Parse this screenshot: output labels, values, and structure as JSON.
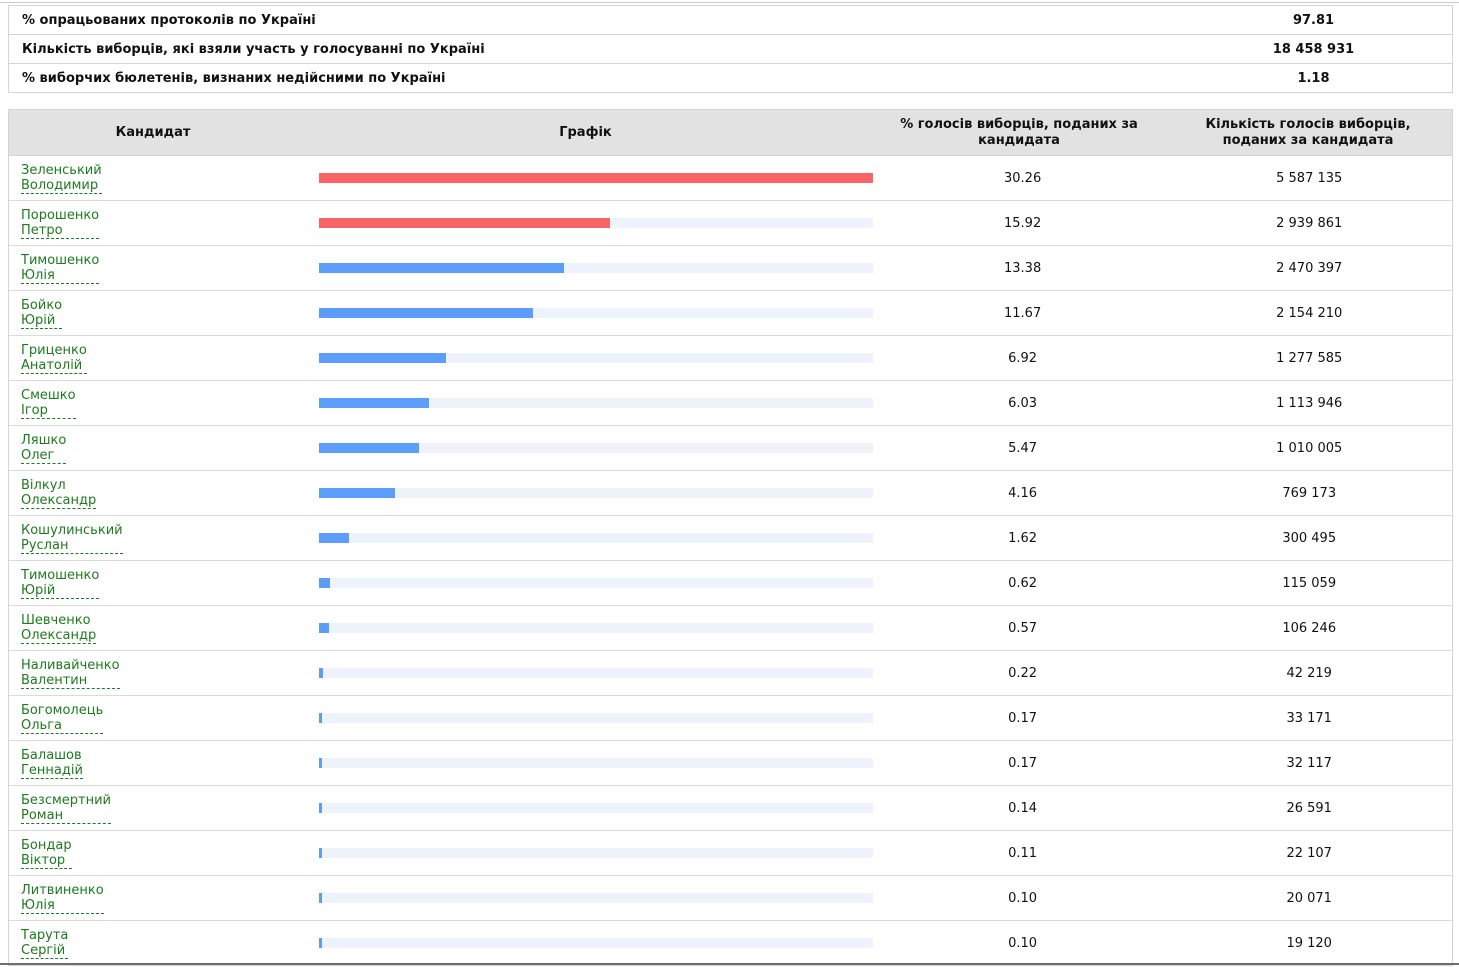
{
  "summary": [
    {
      "label": "% опрацьованих протоколів по Україні",
      "value": "97.81"
    },
    {
      "label": "Кількість виборців, які взяли участь у голосуванні по Україні",
      "value": "18 458 931"
    },
    {
      "label": "% виборчих бюлетенів, визнаних недійсними по Україні",
      "value": "1.18"
    }
  ],
  "table": {
    "headers": {
      "candidate": "Кандидат",
      "chart": "Графік",
      "percent": "% голосів виборців, поданих за кандидата",
      "votes": "Кількість голосів виборців, поданих за кандидата"
    },
    "colors": {
      "top": "#f96466",
      "other": "#5c9dfa",
      "track": "#eef2fb",
      "link": "#1d7a1d"
    },
    "max_percent": 30.26,
    "rows": [
      {
        "surname": "Зеленський",
        "given": "Володимир",
        "percent": "30.26",
        "votes": "5 587 135"
      },
      {
        "surname": "Порошенко",
        "given": "Петро",
        "percent": "15.92",
        "votes": "2 939 861"
      },
      {
        "surname": "Тимошенко",
        "given": "Юлія",
        "percent": "13.38",
        "votes": "2 470 397"
      },
      {
        "surname": "Бойко",
        "given": "Юрій",
        "percent": "11.67",
        "votes": "2 154 210"
      },
      {
        "surname": "Гриценко",
        "given": "Анатолій",
        "percent": "6.92",
        "votes": "1 277 585"
      },
      {
        "surname": "Смешко",
        "given": "Ігор",
        "percent": "6.03",
        "votes": "1 113 946"
      },
      {
        "surname": "Ляшко",
        "given": "Олег",
        "percent": "5.47",
        "votes": "1 010 005"
      },
      {
        "surname": "Вілкул",
        "given": "Олександр",
        "percent": "4.16",
        "votes": "769 173"
      },
      {
        "surname": "Кошулинський",
        "given": "Руслан",
        "percent": "1.62",
        "votes": "300 495"
      },
      {
        "surname": "Тимошенко",
        "given": "Юрій",
        "percent": "0.62",
        "votes": "115 059"
      },
      {
        "surname": "Шевченко",
        "given": "Олександр",
        "percent": "0.57",
        "votes": "106 246"
      },
      {
        "surname": "Наливайченко",
        "given": "Валентин",
        "percent": "0.22",
        "votes": "42 219"
      },
      {
        "surname": "Богомолець",
        "given": "Ольга",
        "percent": "0.17",
        "votes": "33 171"
      },
      {
        "surname": "Балашов",
        "given": "Геннадій",
        "percent": "0.17",
        "votes": "32 117"
      },
      {
        "surname": "Безсмертний",
        "given": "Роман",
        "percent": "0.14",
        "votes": "26 591"
      },
      {
        "surname": "Бондар",
        "given": "Віктор",
        "percent": "0.11",
        "votes": "22 107"
      },
      {
        "surname": "Литвиненко",
        "given": "Юлія",
        "percent": "0.10",
        "votes": "20 071"
      },
      {
        "surname": "Тарута",
        "given": "Сергій",
        "percent": "0.10",
        "votes": "19 120"
      }
    ]
  }
}
